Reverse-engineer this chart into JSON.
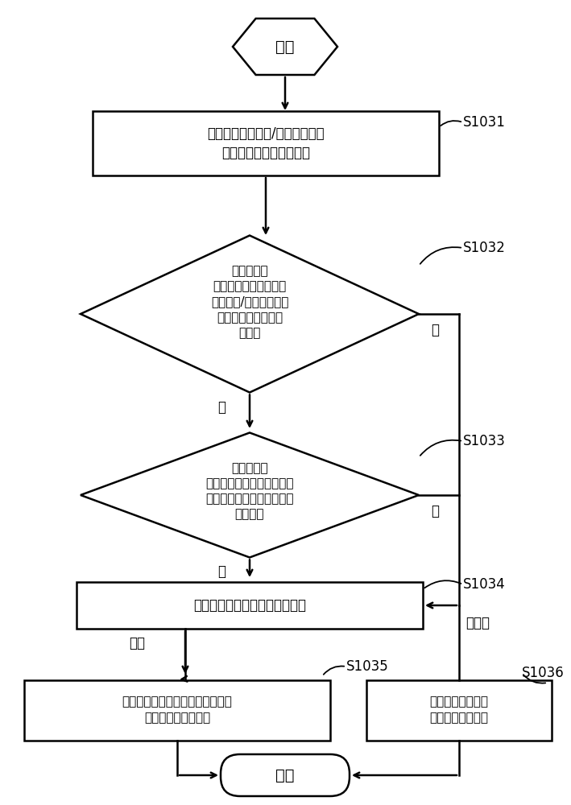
{
  "bg_color": "#ffffff",
  "line_color": "#000000",
  "text_color": "#000000",
  "start_text": "开始",
  "end_text": "结束",
  "s1031_text": "根据当前的单据和/或及用户的属\n性信息，查找关联映射表",
  "s1031_label": "S1031",
  "s1032_text": "判断关联映\n射表中是否存在与当前\n的单据和/或用户的属性\n信息对应的临时附件\n的路径",
  "s1032_label": "S1032",
  "s1033_text": "根据对应的\n临时附件的路径，判断服务\n器中是否存在与单据对应的\n临时附件",
  "s1033_label": "S1033",
  "s1034_text": "提示用户选择是否进行附件关联",
  "s1034_label": "S1034",
  "s1035_text": "将单据与对应的临时附件的路径绑\n定，并提交至服务器",
  "s1035_label": "S1035",
  "s1036_text": "新增上传与单据对\n应的附件至服务器",
  "s1036_label": "S1036",
  "yes_text": "是",
  "no_text": "否",
  "assoc_text": "关联",
  "no_assoc_text": "不关联"
}
